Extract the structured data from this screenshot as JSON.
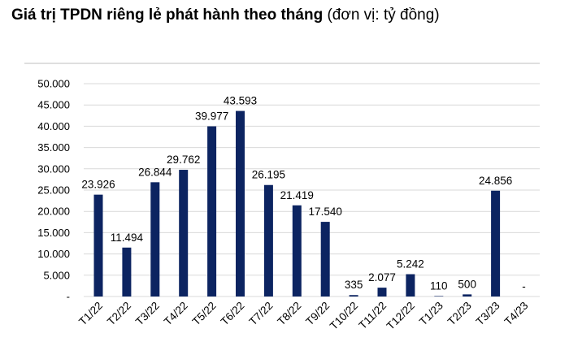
{
  "title": {
    "main": "Giá trị TPDN riêng lẻ phát hành theo tháng",
    "unit": "(đơn vị: tỷ đồng)"
  },
  "chart_data": {
    "type": "bar",
    "title": "Giá trị TPDN riêng lẻ phát hành theo tháng (đơn vị: tỷ đồng)",
    "categories": [
      "T1/22",
      "T2/22",
      "T3/22",
      "T4/22",
      "T5/22",
      "T6/22",
      "T7/22",
      "T8/22",
      "T9/22",
      "T10/22",
      "T11/22",
      "T12/22",
      "T1/23",
      "T2/23",
      "T3/23",
      "T4/23"
    ],
    "values": [
      23926,
      11494,
      26844,
      29762,
      39977,
      43593,
      26195,
      21419,
      17540,
      335,
      2077,
      5242,
      110,
      500,
      24856,
      0
    ],
    "data_labels": [
      "23.926",
      "11.494",
      "26.844",
      "29.762",
      "39.977",
      "43.593",
      "26.195",
      "21.419",
      "17.540",
      "335",
      "2.077",
      "5.242",
      "110",
      "500",
      "24.856",
      "-"
    ],
    "y_ticks": [
      "-",
      "5.000",
      "10.000",
      "15.000",
      "20.000",
      "25.000",
      "30.000",
      "35.000",
      "40.000",
      "45.000",
      "50.000"
    ],
    "ylim": [
      0,
      50000
    ],
    "grid": true,
    "bar_color": "#0c2461",
    "legend": "none"
  }
}
